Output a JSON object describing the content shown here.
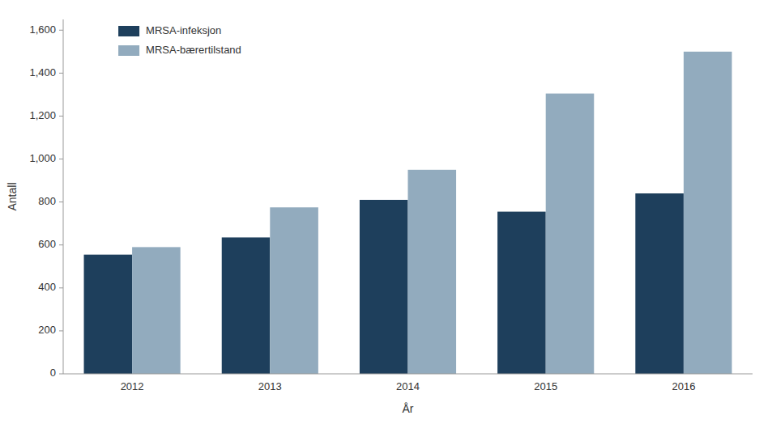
{
  "chart_data": {
    "type": "bar",
    "xlabel": "År",
    "ylabel": "Antall",
    "categories": [
      "2012",
      "2013",
      "2014",
      "2015",
      "2016"
    ],
    "series": [
      {
        "name": "MRSA-infeksjon",
        "color": "#1e3f5c",
        "values": [
          555,
          635,
          810,
          755,
          840
        ]
      },
      {
        "name": "MRSA-bærertilstand",
        "color": "#92abbe",
        "values": [
          590,
          775,
          950,
          1305,
          1500
        ]
      }
    ],
    "ylim": [
      0,
      1650
    ],
    "yticks": [
      0,
      200,
      400,
      600,
      800,
      {
        "value": 1000,
        "label": "1,000"
      },
      {
        "value": 1200,
        "label": "1,200"
      },
      {
        "value": 1400,
        "label": "1,400"
      },
      {
        "value": 1600,
        "label": "1,600"
      }
    ],
    "grid": false,
    "legend": "upper left"
  }
}
